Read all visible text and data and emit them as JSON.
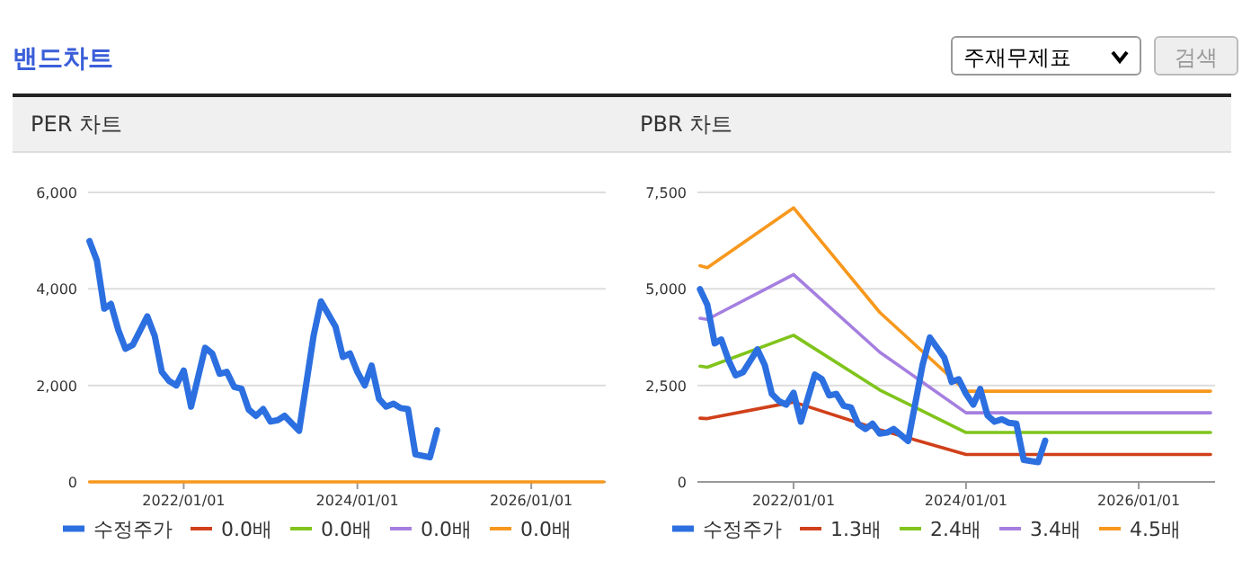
{
  "chart_data": [
    {
      "type": "line",
      "title": "PER 차트",
      "annotations": [
        "밴드차트"
      ],
      "xlim": [
        "2020-11-25",
        "2026-11-10"
      ],
      "xticks": [
        {
          "value": "2022-01-01",
          "label": "2022/01/01"
        },
        {
          "value": "2024-01-01",
          "label": "2024/01/01"
        },
        {
          "value": "2026-01-01",
          "label": "2026/01/01"
        }
      ],
      "ylim": [
        0,
        6000
      ],
      "yticks": [
        0,
        {
          "value": 2000,
          "label": "2,000"
        },
        {
          "value": 4000,
          "label": "4,000"
        },
        {
          "value": 6000,
          "label": "6,000"
        }
      ],
      "grid": "y",
      "legend": "bottom",
      "line_style": "solid",
      "series": [
        {
          "name": "수정주가",
          "color": "#2c6fe0",
          "x": [
            "2020-12",
            "2021-01",
            "2021-02",
            "2021-03",
            "2021-04",
            "2021-05",
            "2021-06",
            "2021-08",
            "2021-09",
            "2021-10",
            "2021-11",
            "2021-12",
            "2022-01",
            "2022-02",
            "2022-04",
            "2022-05",
            "2022-06",
            "2022-07",
            "2022-08",
            "2022-09",
            "2022-10",
            "2022-11",
            "2022-12",
            "2023-01",
            "2023-02",
            "2023-03",
            "2023-05",
            "2023-07",
            "2023-08",
            "2023-10",
            "2023-11",
            "2023-12",
            "2024-01",
            "2024-02",
            "2024-03",
            "2024-04",
            "2024-05",
            "2024-06",
            "2024-07",
            "2024-08",
            "2024-09",
            "2024-11",
            "2024-12"
          ],
          "values": [
            4990,
            4590,
            3590,
            3690,
            3150,
            2760,
            2840,
            3430,
            3030,
            2280,
            2090,
            2000,
            2310,
            1560,
            2780,
            2660,
            2240,
            2280,
            1970,
            1930,
            1500,
            1370,
            1510,
            1250,
            1280,
            1370,
            1060,
            3030,
            3740,
            3220,
            2590,
            2660,
            2280,
            2000,
            2410,
            1720,
            1560,
            1620,
            1530,
            1510,
            570,
            510,
            1070
          ]
        },
        {
          "name": "0.0배",
          "color": "#d0401a",
          "values": [
            null,
            null
          ]
        },
        {
          "name": "0.0배",
          "color": "#80c41c",
          "values": [
            null,
            null
          ]
        },
        {
          "name": "0.0배",
          "color": "#a57fe0",
          "values": [
            null,
            null
          ]
        },
        {
          "name": "0.0배",
          "color": "#f7981d",
          "x": [
            "2020-12",
            "2026-11"
          ],
          "values": [
            0,
            0
          ]
        }
      ]
    },
    {
      "type": "line",
      "title": "PBR 차트",
      "annotations": [
        "주재무제표",
        "검색"
      ],
      "xlim": [
        "2020-11-20",
        "2026-11-20"
      ],
      "xticks": [
        {
          "value": "2022-01-01",
          "label": "2022/01/01"
        },
        {
          "value": "2024-01-01",
          "label": "2024/01/01"
        },
        {
          "value": "2026-01-01",
          "label": "2026/01/01"
        }
      ],
      "ylim": [
        0,
        7500
      ],
      "yticks": [
        0,
        {
          "value": 2500,
          "label": "2,500"
        },
        {
          "value": 5000,
          "label": "5,000"
        },
        {
          "value": 7500,
          "label": "7,500"
        }
      ],
      "grid": "y",
      "legend": "bottom",
      "line_style": "solid",
      "series": [
        {
          "name": "수정주가",
          "color": "#2c6fe0",
          "x": [
            "2020-12",
            "2021-01",
            "2021-02",
            "2021-03",
            "2021-04",
            "2021-05",
            "2021-06",
            "2021-08",
            "2021-09",
            "2021-10",
            "2021-11",
            "2021-12",
            "2022-01",
            "2022-02",
            "2022-04",
            "2022-05",
            "2022-06",
            "2022-07",
            "2022-08",
            "2022-09",
            "2022-10",
            "2022-11",
            "2022-12",
            "2023-01",
            "2023-02",
            "2023-03",
            "2023-05",
            "2023-07",
            "2023-08",
            "2023-10",
            "2023-11",
            "2023-12",
            "2024-01",
            "2024-02",
            "2024-03",
            "2024-04",
            "2024-05",
            "2024-06",
            "2024-07",
            "2024-08",
            "2024-09",
            "2024-11",
            "2024-12"
          ],
          "values": [
            4990,
            4590,
            3590,
            3690,
            3150,
            2760,
            2840,
            3430,
            3030,
            2280,
            2090,
            2000,
            2310,
            1560,
            2780,
            2660,
            2240,
            2280,
            1970,
            1930,
            1500,
            1370,
            1510,
            1250,
            1280,
            1370,
            1060,
            3030,
            3740,
            3220,
            2590,
            2660,
            2280,
            2000,
            2410,
            1720,
            1560,
            1620,
            1530,
            1510,
            570,
            510,
            1070
          ]
        },
        {
          "name": "1.3배",
          "color": "#d0401a",
          "x": [
            "2020-12",
            "2021-01",
            "2022-01",
            "2023-01",
            "2024-01",
            "2026-11"
          ],
          "values": [
            1650,
            1640,
            2070,
            1350,
            710,
            710
          ]
        },
        {
          "name": "2.4배",
          "color": "#80c41c",
          "x": [
            "2020-12",
            "2021-01",
            "2022-01",
            "2023-01",
            "2024-01",
            "2026-11"
          ],
          "values": [
            3000,
            2970,
            3800,
            2380,
            1280,
            1280
          ]
        },
        {
          "name": "3.4배",
          "color": "#a57fe0",
          "x": [
            "2020-12",
            "2021-01",
            "2022-01",
            "2023-01",
            "2024-01",
            "2026-11"
          ],
          "values": [
            4240,
            4210,
            5370,
            3360,
            1790,
            1790
          ]
        },
        {
          "name": "4.5배",
          "color": "#f7981d",
          "x": [
            "2020-12",
            "2021-01",
            "2022-01",
            "2023-01",
            "2024-01",
            "2026-11"
          ],
          "values": [
            5600,
            5550,
            7100,
            4390,
            2350,
            2350
          ]
        }
      ]
    }
  ]
}
